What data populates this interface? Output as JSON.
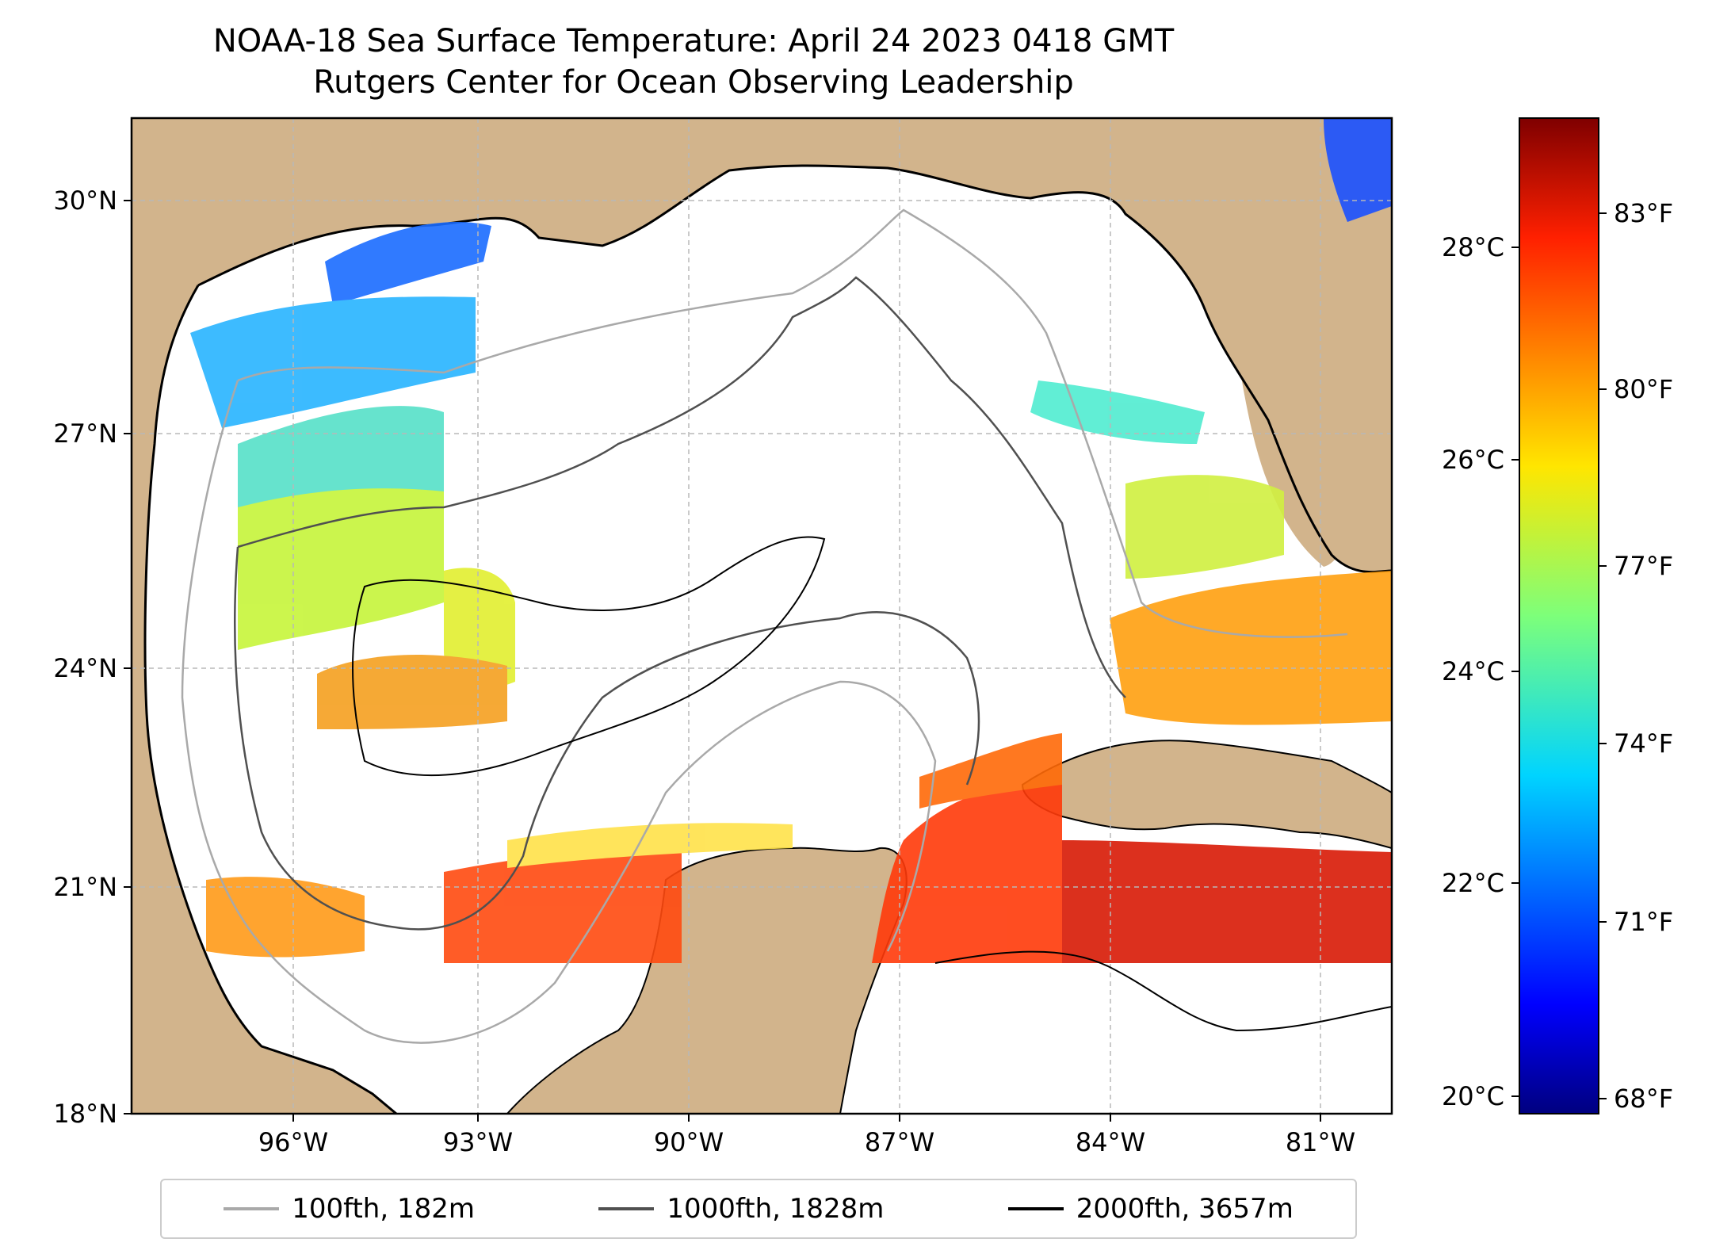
{
  "title": {
    "line1": "NOAA-18 Sea Surface Temperature: April 24 2023 0418 GMT",
    "line2": "Rutgers Center for Ocean Observing Leadership"
  },
  "map": {
    "lon_range": [
      -98.0,
      -80.3
    ],
    "lat_range": [
      18.0,
      31.0
    ],
    "lat_ticks": [
      "18°N",
      "21°N",
      "24°N",
      "27°N",
      "30°N"
    ],
    "lon_ticks": [
      "96°W",
      "93°W",
      "90°W",
      "87°W",
      "84°W",
      "81°W"
    ],
    "gridlines": true,
    "land_color": "#d2b48c",
    "ocean_color": "#ffffff"
  },
  "colorbar": {
    "celsius_ticks": [
      "20°C",
      "22°C",
      "24°C",
      "26°C",
      "28°C"
    ],
    "fahrenheit_ticks": [
      "68°F",
      "71°F",
      "74°F",
      "77°F",
      "80°F",
      "83°F"
    ],
    "colormap": "jet",
    "range_f": [
      67.5,
      85.0
    ]
  },
  "legend": {
    "items": [
      {
        "label": "100fth, 182m",
        "color": "#a9a9a9"
      },
      {
        "label": "1000fth, 1828m",
        "color": "#505050"
      },
      {
        "label": "2000fth, 3657m",
        "color": "#000000"
      }
    ]
  }
}
